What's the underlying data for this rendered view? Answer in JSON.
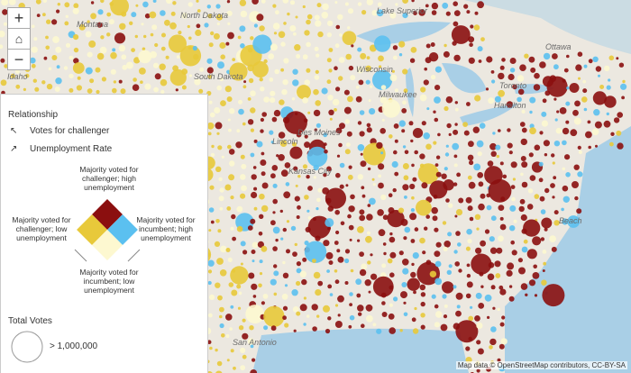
{
  "controls": {
    "zoom_in": "+",
    "zoom_out": "−"
  },
  "map_labels": [
    "Montana",
    "North Dakota",
    "South Dakota",
    "Idaho",
    "Lake Superior",
    "Ottawa",
    "Toronto",
    "Hamilton",
    "Milwaukee",
    "Des Moines",
    "Lincoln",
    "Kansas City",
    "Wisconsin",
    "Beach",
    "San Antonio"
  ],
  "legend": {
    "heading": "Relationship",
    "axis_x": "Votes for challenger",
    "axis_y": "Unemployment Rate",
    "top": "Majority voted for challenger; high unemployment",
    "left": "Majority voted for challenger; low unemployment",
    "right": "Majority voted for incumbent; high unemployment",
    "bottom": "Majority voted for incumbent; low unemployment",
    "size_heading": "Total Votes",
    "size_label": "> 1,000,000"
  },
  "attribution": "Map data © OpenStreetMap contributors, CC-BY-SA"
}
